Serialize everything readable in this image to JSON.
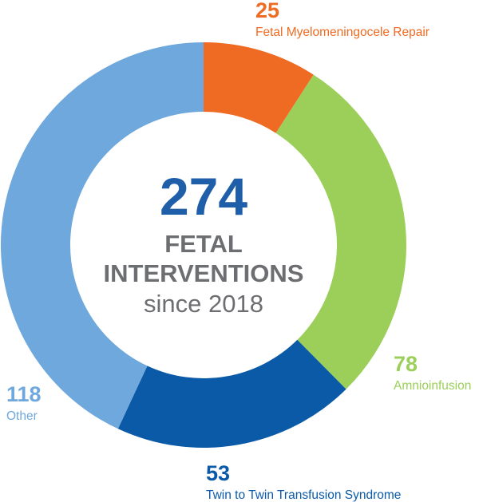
{
  "center": {
    "total": "274",
    "line1": "FETAL",
    "line2": "INTERVENTIONS",
    "line3": "since 2018"
  },
  "colors": {
    "total": "#1f5ea8",
    "center_text": "#6d6e71"
  },
  "chart_data": {
    "type": "pie",
    "variant": "donut",
    "total": 274,
    "slices": [
      {
        "name": "Fetal Myelomeningocele Repair",
        "value": 25,
        "color": "#ef6b23"
      },
      {
        "name": "Amnioinfusion",
        "value": 78,
        "color": "#9ccf5a"
      },
      {
        "name": "Twin to Twin Transfusion Syndrome",
        "value": 53,
        "color": "#0b5aa8"
      },
      {
        "name": "Other",
        "value": 118,
        "color": "#6fa8dc"
      }
    ]
  }
}
